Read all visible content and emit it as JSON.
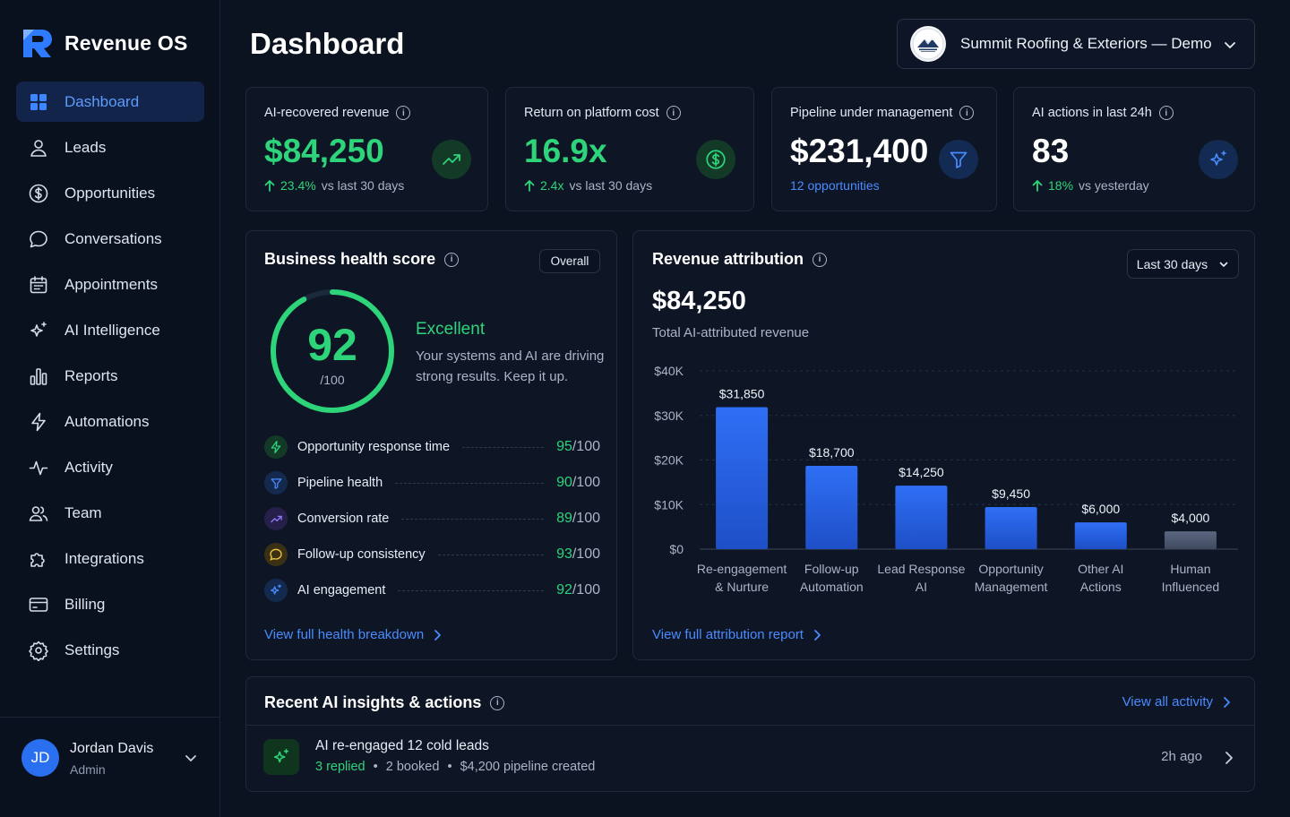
{
  "app": {
    "name": "Revenue OS"
  },
  "sidebar": {
    "items": [
      {
        "label": "Dashboard",
        "icon": "grid-icon",
        "active": true
      },
      {
        "label": "Leads",
        "icon": "user-icon"
      },
      {
        "label": "Opportunities",
        "icon": "dollar-circle-icon"
      },
      {
        "label": "Conversations",
        "icon": "chat-bubble-icon"
      },
      {
        "label": "Appointments",
        "icon": "calendar-icon"
      },
      {
        "label": "AI Intelligence",
        "icon": "sparkles-icon"
      },
      {
        "label": "Reports",
        "icon": "bar-chart-icon"
      },
      {
        "label": "Automations",
        "icon": "lightning-icon"
      },
      {
        "label": "Activity",
        "icon": "pulse-icon"
      },
      {
        "label": "Team",
        "icon": "users-icon"
      },
      {
        "label": "Integrations",
        "icon": "puzzle-icon"
      },
      {
        "label": "Billing",
        "icon": "credit-card-icon"
      },
      {
        "label": "Settings",
        "icon": "gear-icon"
      }
    ],
    "user": {
      "initials": "JD",
      "name": "Jordan Davis",
      "role": "Admin"
    }
  },
  "header": {
    "title": "Dashboard",
    "company": "Summit Roofing & Exteriors — Demo"
  },
  "kpis": [
    {
      "label": "AI-recovered revenue",
      "value": "$84,250",
      "delta": "23.4%",
      "delta_text": "vs last 30 days",
      "icon": "trend-up-icon",
      "color": "#2ed47a"
    },
    {
      "label": "Return on platform cost",
      "value": "16.9x",
      "delta": "2.4x",
      "delta_text": "vs last 30 days",
      "icon": "dollar-circle-icon",
      "color": "#2ed47a"
    },
    {
      "label": "Pipeline under management",
      "value": "$231,400",
      "link_text": "12 opportunities",
      "icon": "funnel-icon",
      "color": "#ffffff"
    },
    {
      "label": "AI actions in last 24h",
      "value": "83",
      "delta": "18%",
      "delta_text": "vs yesterday",
      "icon": "sparkles-icon",
      "color": "#ffffff"
    }
  ],
  "health": {
    "title": "Business health score",
    "filter": "Overall",
    "score": 92,
    "score_den": "/100",
    "status": "Excellent",
    "description": "Your systems and AI are driving strong results. Keep it up.",
    "rows": [
      {
        "label": "Opportunity response time",
        "score": "95",
        "den": "/100",
        "icon": "lightning-icon",
        "tint": "#123a27",
        "stroke": "#2ed47a"
      },
      {
        "label": "Pipeline health",
        "score": "90",
        "den": "/100",
        "icon": "funnel-icon",
        "tint": "#132a4e",
        "stroke": "#4a8bff"
      },
      {
        "label": "Conversion rate",
        "score": "89",
        "den": "/100",
        "icon": "trend-up-icon",
        "tint": "#261f4a",
        "stroke": "#8f7bff"
      },
      {
        "label": "Follow-up consistency",
        "score": "93",
        "den": "/100",
        "icon": "chat-bubble-icon",
        "tint": "#3a3114",
        "stroke": "#f2c53d"
      },
      {
        "label": "AI engagement",
        "score": "92",
        "den": "/100",
        "icon": "sparkles-icon",
        "tint": "#132a4e",
        "stroke": "#4a8bff"
      }
    ],
    "link": "View full health breakdown"
  },
  "attribution": {
    "title": "Revenue attribution",
    "range": "Last 30 days",
    "total": "$84,250",
    "total_label": "Total AI-attributed revenue",
    "link": "View full attribution report"
  },
  "chart_data": {
    "type": "bar",
    "categories": [
      [
        "Re-engagement",
        "& Nurture"
      ],
      [
        "Follow-up",
        "Automation"
      ],
      [
        "Lead Response",
        "AI"
      ],
      [
        "Opportunity",
        "Management"
      ],
      [
        "Other AI",
        "Actions"
      ],
      [
        "Human",
        "Influenced"
      ]
    ],
    "values": [
      31850,
      18700,
      14250,
      9450,
      6000,
      4000
    ],
    "value_labels": [
      "$31,850",
      "$18,700",
      "$14,250",
      "$9,450",
      "$6,000",
      "$4,000"
    ],
    "yticks": [
      "$0",
      "$10K",
      "$20K",
      "$30K",
      "$40K"
    ],
    "ylim": [
      0,
      40000
    ],
    "colors": [
      "#2563eb",
      "#2563eb",
      "#2563eb",
      "#2563eb",
      "#2563eb",
      "#4b5870"
    ],
    "grid": true
  },
  "insights": {
    "title": "Recent AI insights & actions",
    "view_all": "View all activity",
    "items": [
      {
        "title": "AI re-engaged 12 cold leads",
        "replied": "3 replied",
        "booked": "2 booked",
        "pipeline": "$4,200 pipeline created",
        "time": "2h ago"
      }
    ]
  }
}
